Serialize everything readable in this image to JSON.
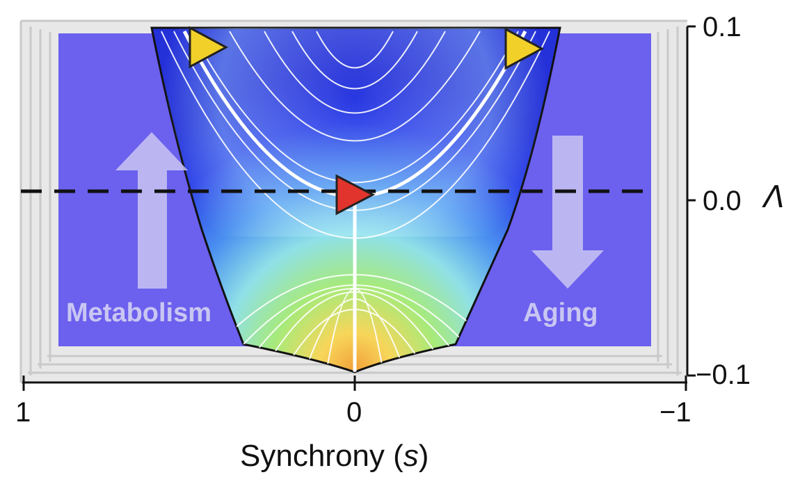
{
  "x_axis": {
    "title": "Synchrony (",
    "title_var": "s",
    "title_close": ")",
    "ticks": [
      "1",
      "0",
      "−1"
    ]
  },
  "y_axis": {
    "title": "Λ",
    "ticks": [
      "0.1",
      "0.0",
      "−0.1"
    ]
  },
  "labels": {
    "left_region": "Metabolism",
    "right_region": "Aging"
  },
  "markers": [
    {
      "name": "yellow-triangle-left",
      "color": "#f2d02a"
    },
    {
      "name": "yellow-triangle-right",
      "color": "#f2d02a"
    },
    {
      "name": "red-triangle-center",
      "color": "#e0342c"
    }
  ],
  "colors": {
    "panel_background": "#6c60ee",
    "dashed_line": "#111111",
    "arrow": "#c9c6f2",
    "contour_lines": "#ffffff"
  }
}
